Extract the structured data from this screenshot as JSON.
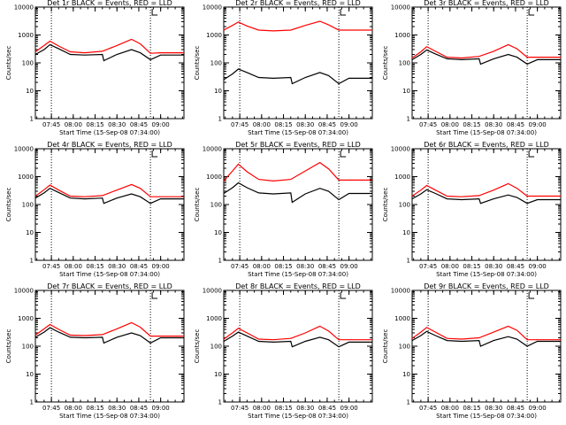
{
  "chart_data": [
    {
      "type": "line",
      "title": "Det 1r BLACK = Events, RED = LLD",
      "xlabel": "Start Time (15-Sep-08 07:34:00)",
      "ylabel": "Counts/sec",
      "x_tick_labels": [
        "07:45",
        "08:00",
        "08:15",
        "08:30",
        "08:45",
        "09:00"
      ],
      "y_tick_labels": [
        "1",
        "10",
        "100",
        "1000",
        "10000"
      ],
      "y_scale": "log",
      "ylim": [
        1,
        10000
      ],
      "xlim": [
        "07:34",
        "09:16"
      ],
      "vertical_dotted_lines": [
        "07:45",
        "08:53"
      ],
      "series": [
        {
          "name": "LLD",
          "color": "#ff0000",
          "x": [
            "07:34",
            "07:40",
            "07:44",
            "07:50",
            "07:58",
            "08:08",
            "08:20",
            "08:30",
            "08:40",
            "08:46",
            "08:53",
            "09:00",
            "09:16"
          ],
          "y": [
            250,
            420,
            600,
            400,
            250,
            230,
            260,
            420,
            700,
            480,
            220,
            230,
            230
          ]
        },
        {
          "name": "Events",
          "color": "#000000",
          "x": [
            "07:34",
            "07:40",
            "07:44",
            "07:50",
            "07:58",
            "08:08",
            "08:20",
            "08:21",
            "08:30",
            "08:40",
            "08:46",
            "08:53",
            "09:00",
            "09:16"
          ],
          "y": [
            200,
            300,
            450,
            320,
            200,
            190,
            200,
            120,
            200,
            300,
            230,
            130,
            190,
            190
          ]
        }
      ]
    },
    {
      "type": "line",
      "title": "Det 2r BLACK = Events, RED = LLD",
      "xlabel": "Start Time (15-Sep-08 07:34:00)",
      "ylabel": "Counts/sec",
      "x_tick_labels": [
        "07:45",
        "08:00",
        "08:15",
        "08:30",
        "08:45",
        "09:00"
      ],
      "y_tick_labels": [
        "1",
        "10",
        "100",
        "1000",
        "10000"
      ],
      "y_scale": "log",
      "ylim": [
        1,
        10000
      ],
      "xlim": [
        "07:34",
        "09:16"
      ],
      "vertical_dotted_lines": [
        "07:45",
        "08:53"
      ],
      "series": [
        {
          "name": "LLD",
          "color": "#ff0000",
          "x": [
            "07:34",
            "07:40",
            "07:44",
            "07:50",
            "07:58",
            "08:08",
            "08:20",
            "08:30",
            "08:40",
            "08:46",
            "08:53",
            "09:00",
            "09:16"
          ],
          "y": [
            1500,
            2200,
            2900,
            2100,
            1500,
            1400,
            1500,
            2200,
            3100,
            2300,
            1500,
            1500,
            1500
          ]
        },
        {
          "name": "Events",
          "color": "#000000",
          "x": [
            "07:34",
            "07:40",
            "07:44",
            "07:50",
            "07:58",
            "08:08",
            "08:20",
            "08:21",
            "08:30",
            "08:40",
            "08:46",
            "08:53",
            "09:00",
            "09:16"
          ],
          "y": [
            25,
            40,
            60,
            45,
            30,
            28,
            30,
            18,
            30,
            45,
            35,
            18,
            28,
            28
          ]
        }
      ]
    },
    {
      "type": "line",
      "title": "Det 3r BLACK = Events, RED = LLD",
      "xlabel": "Start Time (15-Sep-08 07:34:00)",
      "ylabel": "Counts/sec",
      "x_tick_labels": [
        "07:45",
        "08:00",
        "08:15",
        "08:30",
        "08:45",
        "09:00"
      ],
      "y_tick_labels": [
        "1",
        "10",
        "100",
        "1000",
        "10000"
      ],
      "y_scale": "log",
      "ylim": [
        1,
        10000
      ],
      "xlim": [
        "07:34",
        "09:16"
      ],
      "vertical_dotted_lines": [
        "07:45",
        "08:53"
      ],
      "series": [
        {
          "name": "LLD",
          "color": "#ff0000",
          "x": [
            "07:34",
            "07:40",
            "07:44",
            "07:50",
            "07:58",
            "08:08",
            "08:20",
            "08:30",
            "08:40",
            "08:46",
            "08:53",
            "09:00",
            "09:16"
          ],
          "y": [
            150,
            250,
            380,
            260,
            160,
            150,
            170,
            260,
            450,
            320,
            160,
            160,
            160
          ]
        },
        {
          "name": "Events",
          "color": "#000000",
          "x": [
            "07:34",
            "07:40",
            "07:44",
            "07:50",
            "07:58",
            "08:08",
            "08:20",
            "08:21",
            "08:30",
            "08:40",
            "08:46",
            "08:53",
            "09:00",
            "09:16"
          ],
          "y": [
            130,
            200,
            290,
            210,
            140,
            130,
            140,
            90,
            140,
            200,
            160,
            90,
            130,
            130
          ]
        }
      ]
    },
    {
      "type": "line",
      "title": "Det 4r BLACK = Events, RED = LLD",
      "xlabel": "Start Time (15-Sep-08 07:34:00)",
      "ylabel": "Counts/sec",
      "x_tick_labels": [
        "07:45",
        "08:00",
        "08:15",
        "08:30",
        "08:45",
        "09:00"
      ],
      "y_tick_labels": [
        "1",
        "10",
        "100",
        "1000",
        "10000"
      ],
      "y_scale": "log",
      "ylim": [
        1,
        10000
      ],
      "xlim": [
        "07:34",
        "09:16"
      ],
      "vertical_dotted_lines": [
        "07:45",
        "08:53"
      ],
      "series": [
        {
          "name": "LLD",
          "color": "#ff0000",
          "x": [
            "07:34",
            "07:40",
            "07:44",
            "07:50",
            "07:58",
            "08:08",
            "08:20",
            "08:30",
            "08:40",
            "08:46",
            "08:53",
            "09:00",
            "09:16"
          ],
          "y": [
            200,
            340,
            500,
            330,
            200,
            190,
            210,
            330,
            520,
            380,
            190,
            190,
            190
          ]
        },
        {
          "name": "Events",
          "color": "#000000",
          "x": [
            "07:34",
            "07:40",
            "07:44",
            "07:50",
            "07:58",
            "08:08",
            "08:20",
            "08:21",
            "08:30",
            "08:40",
            "08:46",
            "08:53",
            "09:00",
            "09:16"
          ],
          "y": [
            170,
            260,
            380,
            270,
            170,
            160,
            170,
            110,
            170,
            240,
            190,
            110,
            160,
            160
          ]
        }
      ]
    },
    {
      "type": "line",
      "title": "Det 5r BLACK = Events, RED = LLD",
      "xlabel": "Start Time (15-Sep-08 07:34:00)",
      "ylabel": "Counts/sec",
      "x_tick_labels": [
        "07:45",
        "08:00",
        "08:15",
        "08:30",
        "08:45",
        "09:00"
      ],
      "y_tick_labels": [
        "1",
        "10",
        "100",
        "1000",
        "10000"
      ],
      "y_scale": "log",
      "ylim": [
        1,
        10000
      ],
      "xlim": [
        "07:34",
        "09:16"
      ],
      "vertical_dotted_lines": [
        "07:45",
        "08:53"
      ],
      "series": [
        {
          "name": "LLD",
          "color": "#ff0000",
          "x": [
            "07:34",
            "07:40",
            "07:44",
            "07:50",
            "07:58",
            "08:08",
            "08:20",
            "08:30",
            "08:40",
            "08:46",
            "08:53",
            "09:00",
            "09:16"
          ],
          "y": [
            700,
            1600,
            2800,
            1500,
            800,
            700,
            800,
            1600,
            3200,
            1900,
            750,
            750,
            750
          ]
        },
        {
          "name": "Events",
          "color": "#000000",
          "x": [
            "07:34",
            "07:40",
            "07:44",
            "07:50",
            "07:58",
            "08:08",
            "08:20",
            "08:21",
            "08:30",
            "08:40",
            "08:46",
            "08:53",
            "09:00",
            "09:16"
          ],
          "y": [
            250,
            400,
            600,
            400,
            260,
            240,
            260,
            120,
            240,
            380,
            300,
            150,
            250,
            250
          ]
        }
      ]
    },
    {
      "type": "line",
      "title": "Det 6r BLACK = Events, RED = LLD",
      "xlabel": "Start Time (15-Sep-08 07:34:00)",
      "ylabel": "Counts/sec",
      "x_tick_labels": [
        "07:45",
        "08:00",
        "08:15",
        "08:30",
        "08:45",
        "09:00"
      ],
      "y_tick_labels": [
        "1",
        "10",
        "100",
        "1000",
        "10000"
      ],
      "y_scale": "log",
      "ylim": [
        1,
        10000
      ],
      "xlim": [
        "07:34",
        "09:16"
      ],
      "vertical_dotted_lines": [
        "07:45",
        "08:53"
      ],
      "series": [
        {
          "name": "LLD",
          "color": "#ff0000",
          "x": [
            "07:34",
            "07:40",
            "07:44",
            "07:50",
            "07:58",
            "08:08",
            "08:20",
            "08:30",
            "08:40",
            "08:46",
            "08:53",
            "09:00",
            "09:16"
          ],
          "y": [
            200,
            330,
            480,
            330,
            200,
            190,
            210,
            330,
            560,
            380,
            200,
            200,
            200
          ]
        },
        {
          "name": "Events",
          "color": "#000000",
          "x": [
            "07:34",
            "07:40",
            "07:44",
            "07:50",
            "07:58",
            "08:08",
            "08:20",
            "08:21",
            "08:30",
            "08:40",
            "08:46",
            "08:53",
            "09:00",
            "09:16"
          ],
          "y": [
            160,
            240,
            340,
            250,
            160,
            150,
            160,
            110,
            160,
            220,
            180,
            110,
            150,
            150
          ]
        }
      ]
    },
    {
      "type": "line",
      "title": "Det 7r BLACK = Events, RED = LLD",
      "xlabel": "Start Time (15-Sep-08 07:34:00)",
      "ylabel": "Counts/sec",
      "x_tick_labels": [
        "07:45",
        "08:00",
        "08:15",
        "08:30",
        "08:45",
        "09:00"
      ],
      "y_tick_labels": [
        "1",
        "10",
        "100",
        "1000",
        "10000"
      ],
      "y_scale": "log",
      "ylim": [
        1,
        10000
      ],
      "xlim": [
        "07:34",
        "09:16"
      ],
      "vertical_dotted_lines": [
        "07:45",
        "08:53"
      ],
      "series": [
        {
          "name": "LLD",
          "color": "#ff0000",
          "x": [
            "07:34",
            "07:40",
            "07:44",
            "07:50",
            "07:58",
            "08:08",
            "08:20",
            "08:30",
            "08:40",
            "08:46",
            "08:53",
            "09:00",
            "09:16"
          ],
          "y": [
            250,
            420,
            600,
            400,
            250,
            240,
            260,
            420,
            700,
            480,
            230,
            230,
            230
          ]
        },
        {
          "name": "Events",
          "color": "#000000",
          "x": [
            "07:34",
            "07:40",
            "07:44",
            "07:50",
            "07:58",
            "08:08",
            "08:20",
            "08:21",
            "08:30",
            "08:40",
            "08:46",
            "08:53",
            "09:00",
            "09:16"
          ],
          "y": [
            210,
            320,
            460,
            320,
            210,
            200,
            210,
            130,
            210,
            300,
            240,
            130,
            200,
            200
          ]
        }
      ]
    },
    {
      "type": "line",
      "title": "Det 8r BLACK = Events, RED = LLD",
      "xlabel": "Start Time (15-Sep-08 07:34:00)",
      "ylabel": "Counts/sec",
      "x_tick_labels": [
        "07:45",
        "08:00",
        "08:15",
        "08:30",
        "08:45",
        "09:00"
      ],
      "y_tick_labels": [
        "1",
        "10",
        "100",
        "1000",
        "10000"
      ],
      "y_scale": "log",
      "ylim": [
        1,
        10000
      ],
      "xlim": [
        "07:34",
        "09:16"
      ],
      "vertical_dotted_lines": [
        "07:45",
        "08:53"
      ],
      "series": [
        {
          "name": "LLD",
          "color": "#ff0000",
          "x": [
            "07:34",
            "07:40",
            "07:44",
            "07:50",
            "07:58",
            "08:08",
            "08:20",
            "08:30",
            "08:40",
            "08:46",
            "08:53",
            "09:00",
            "09:16"
          ],
          "y": [
            180,
            300,
            440,
            300,
            180,
            170,
            190,
            300,
            520,
            350,
            170,
            170,
            170
          ]
        },
        {
          "name": "Events",
          "color": "#000000",
          "x": [
            "07:34",
            "07:40",
            "07:44",
            "07:50",
            "07:58",
            "08:08",
            "08:20",
            "08:21",
            "08:30",
            "08:40",
            "08:46",
            "08:53",
            "09:00",
            "09:16"
          ],
          "y": [
            150,
            230,
            320,
            230,
            150,
            140,
            150,
            95,
            150,
            210,
            170,
            95,
            140,
            140
          ]
        }
      ]
    },
    {
      "type": "line",
      "title": "Det 9r BLACK = Events, RED = LLD",
      "xlabel": "Start Time (15-Sep-08 07:34:00)",
      "ylabel": "Counts/sec",
      "x_tick_labels": [
        "07:45",
        "08:00",
        "08:15",
        "08:30",
        "08:45",
        "09:00"
      ],
      "y_tick_labels": [
        "1",
        "10",
        "100",
        "1000",
        "10000"
      ],
      "y_scale": "log",
      "ylim": [
        1,
        10000
      ],
      "xlim": [
        "07:34",
        "09:16"
      ],
      "vertical_dotted_lines": [
        "07:45",
        "08:53"
      ],
      "series": [
        {
          "name": "LLD",
          "color": "#ff0000",
          "x": [
            "07:34",
            "07:40",
            "07:44",
            "07:50",
            "07:58",
            "08:08",
            "08:20",
            "08:30",
            "08:40",
            "08:46",
            "08:53",
            "09:00",
            "09:16"
          ],
          "y": [
            190,
            320,
            470,
            320,
            190,
            180,
            200,
            320,
            520,
            370,
            170,
            170,
            170
          ]
        },
        {
          "name": "Events",
          "color": "#000000",
          "x": [
            "07:34",
            "07:40",
            "07:44",
            "07:50",
            "07:58",
            "08:08",
            "08:20",
            "08:21",
            "08:30",
            "08:40",
            "08:46",
            "08:53",
            "09:00",
            "09:16"
          ],
          "y": [
            160,
            240,
            340,
            240,
            160,
            150,
            160,
            100,
            160,
            220,
            180,
            100,
            150,
            150
          ]
        }
      ]
    }
  ]
}
